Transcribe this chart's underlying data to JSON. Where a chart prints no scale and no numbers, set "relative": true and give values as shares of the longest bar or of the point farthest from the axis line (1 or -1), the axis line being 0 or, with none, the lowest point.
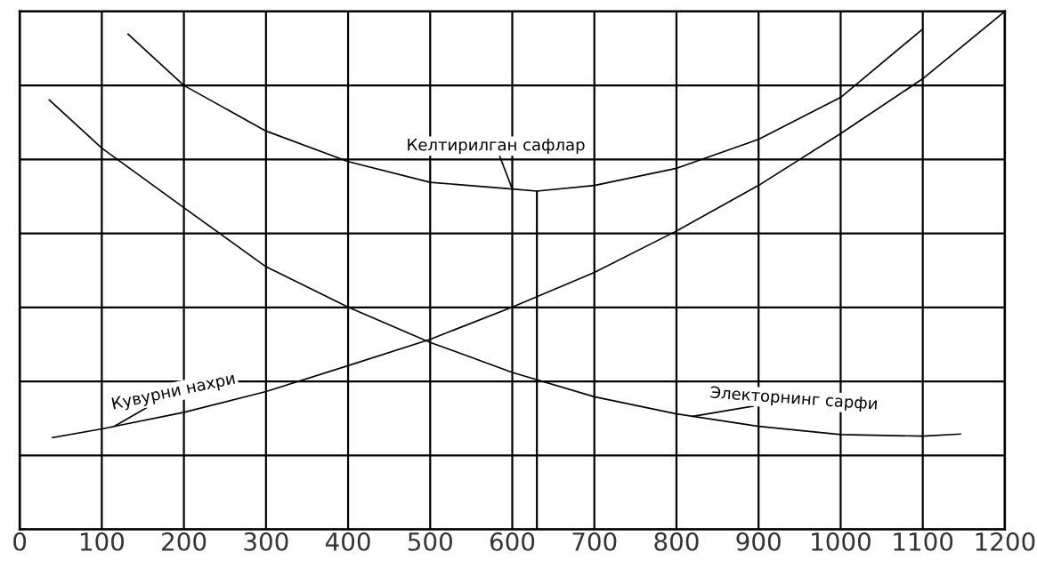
{
  "chart_data": {
    "type": "line",
    "relative": true,
    "grid": true,
    "legend": false,
    "tick_labels": "x",
    "marker": "none",
    "line_style": "solid",
    "xlim": [
      0,
      1200
    ],
    "xticks": [
      0,
      100,
      200,
      300,
      400,
      500,
      600,
      700,
      800,
      900,
      1000,
      1100,
      1200
    ],
    "series": [
      {
        "name": "Келтирилган сафлар",
        "color": "#000000",
        "x": [
          132,
          200,
          300,
          400,
          500,
          600,
          630,
          700,
          800,
          900,
          1000,
          1100
        ],
        "values": [
          0.956,
          0.857,
          0.769,
          0.71,
          0.67,
          0.657,
          0.653,
          0.664,
          0.697,
          0.753,
          0.834,
          0.966
        ]
      },
      {
        "name": "Электорнинг сарфи",
        "color": "#000000",
        "x": [
          36,
          100,
          200,
          300,
          400,
          500,
          600,
          700,
          800,
          900,
          1000,
          1100,
          1146
        ],
        "values": [
          0.829,
          0.736,
          0.621,
          0.507,
          0.429,
          0.361,
          0.303,
          0.256,
          0.223,
          0.199,
          0.183,
          0.18,
          0.184
        ]
      },
      {
        "name": "Кувурни нахри",
        "color": "#000000",
        "x": [
          40,
          100,
          200,
          300,
          400,
          500,
          600,
          700,
          800,
          900,
          1000,
          1100,
          1200
        ],
        "values": [
          0.177,
          0.194,
          0.226,
          0.266,
          0.316,
          0.367,
          0.429,
          0.496,
          0.576,
          0.664,
          0.764,
          0.87,
          1.0
        ]
      }
    ],
    "ref_lines": [
      {
        "axis": "x",
        "value": 630,
        "label": null,
        "color": "#000000"
      }
    ]
  }
}
